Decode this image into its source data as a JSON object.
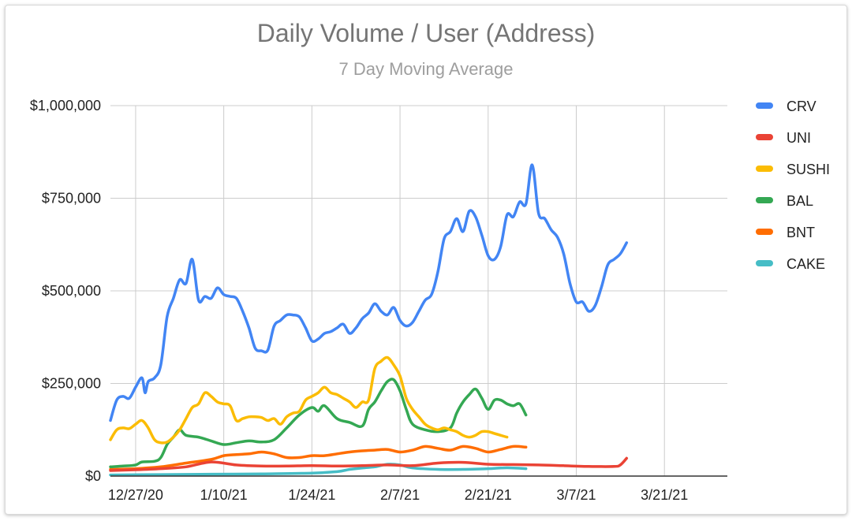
{
  "chart_data": {
    "type": "line",
    "title": "Daily Volume / User (Address)",
    "subtitle": "7 Day Moving Average",
    "xlabel": "",
    "ylabel": "",
    "x_tick_labels": [
      "12/27/20",
      "1/10/21",
      "1/24/21",
      "2/7/21",
      "2/21/21",
      "3/7/21",
      "3/21/21"
    ],
    "y_tick_labels": [
      "$0",
      "$250,000",
      "$500,000",
      "$750,000",
      "$1,000,000"
    ],
    "y_ticks": [
      0,
      250000,
      500000,
      750000,
      1000000
    ],
    "ylim": [
      0,
      1000000
    ],
    "x_range_days": [
      -4,
      94
    ],
    "x_tick_days": [
      0,
      14,
      28,
      42,
      56,
      70,
      84
    ],
    "grid": true,
    "legend_position": "right",
    "series": [
      {
        "name": "CRV",
        "color": "#4285f4",
        "values": [
          [
            -4,
            150000
          ],
          [
            -3,
            205000
          ],
          [
            -2,
            215000
          ],
          [
            -1,
            210000
          ],
          [
            0,
            240000
          ],
          [
            1,
            265000
          ],
          [
            1.5,
            225000
          ],
          [
            2,
            255000
          ],
          [
            3,
            265000
          ],
          [
            4,
            300000
          ],
          [
            5,
            430000
          ],
          [
            6,
            480000
          ],
          [
            7,
            530000
          ],
          [
            8,
            520000
          ],
          [
            9,
            585000
          ],
          [
            10,
            475000
          ],
          [
            11,
            485000
          ],
          [
            12,
            480000
          ],
          [
            13,
            508000
          ],
          [
            14,
            490000
          ],
          [
            15,
            485000
          ],
          [
            16,
            480000
          ],
          [
            17,
            445000
          ],
          [
            18,
            400000
          ],
          [
            19,
            345000
          ],
          [
            20,
            338000
          ],
          [
            21,
            340000
          ],
          [
            22,
            405000
          ],
          [
            23,
            420000
          ],
          [
            24,
            435000
          ],
          [
            25,
            435000
          ],
          [
            26,
            430000
          ],
          [
            27,
            400000
          ],
          [
            28,
            365000
          ],
          [
            29,
            370000
          ],
          [
            30,
            385000
          ],
          [
            31,
            390000
          ],
          [
            32,
            400000
          ],
          [
            33,
            410000
          ],
          [
            34,
            385000
          ],
          [
            35,
            400000
          ],
          [
            36,
            425000
          ],
          [
            37,
            440000
          ],
          [
            38,
            465000
          ],
          [
            39,
            445000
          ],
          [
            40,
            435000
          ],
          [
            41,
            455000
          ],
          [
            42,
            420000
          ],
          [
            43,
            405000
          ],
          [
            44,
            415000
          ],
          [
            45,
            445000
          ],
          [
            46,
            475000
          ],
          [
            47,
            490000
          ],
          [
            48,
            550000
          ],
          [
            49,
            640000
          ],
          [
            50,
            660000
          ],
          [
            51,
            695000
          ],
          [
            52,
            660000
          ],
          [
            53,
            715000
          ],
          [
            54,
            700000
          ],
          [
            55,
            650000
          ],
          [
            56,
            595000
          ],
          [
            57,
            585000
          ],
          [
            58,
            620000
          ],
          [
            59,
            705000
          ],
          [
            60,
            700000
          ],
          [
            61,
            740000
          ],
          [
            62,
            735000
          ],
          [
            63,
            840000
          ],
          [
            64,
            710000
          ],
          [
            65,
            695000
          ],
          [
            66,
            665000
          ],
          [
            67,
            645000
          ],
          [
            68,
            600000
          ],
          [
            69,
            520000
          ],
          [
            70,
            470000
          ],
          [
            71,
            470000
          ],
          [
            72,
            445000
          ],
          [
            73,
            460000
          ],
          [
            74,
            510000
          ],
          [
            75,
            570000
          ],
          [
            76,
            585000
          ],
          [
            77,
            600000
          ],
          [
            78,
            630000
          ]
        ]
      },
      {
        "name": "UNI",
        "color": "#ea4335",
        "values": [
          [
            -4,
            15000
          ],
          [
            0,
            17000
          ],
          [
            4,
            20000
          ],
          [
            8,
            25000
          ],
          [
            12,
            38000
          ],
          [
            16,
            30000
          ],
          [
            20,
            27000
          ],
          [
            24,
            27000
          ],
          [
            28,
            28000
          ],
          [
            32,
            27000
          ],
          [
            36,
            28000
          ],
          [
            40,
            30000
          ],
          [
            44,
            28000
          ],
          [
            48,
            35000
          ],
          [
            52,
            37000
          ],
          [
            56,
            32000
          ],
          [
            60,
            31000
          ],
          [
            64,
            30000
          ],
          [
            68,
            28000
          ],
          [
            72,
            26000
          ],
          [
            76,
            26000
          ],
          [
            77,
            30000
          ],
          [
            78,
            48000
          ]
        ]
      },
      {
        "name": "SUSHI",
        "color": "#fbbc04",
        "values": [
          [
            -4,
            98000
          ],
          [
            -3,
            125000
          ],
          [
            -2,
            130000
          ],
          [
            -1,
            128000
          ],
          [
            0,
            140000
          ],
          [
            1,
            150000
          ],
          [
            2,
            130000
          ],
          [
            3,
            98000
          ],
          [
            4,
            90000
          ],
          [
            5,
            92000
          ],
          [
            6,
            105000
          ],
          [
            7,
            125000
          ],
          [
            8,
            155000
          ],
          [
            9,
            185000
          ],
          [
            10,
            195000
          ],
          [
            11,
            225000
          ],
          [
            12,
            215000
          ],
          [
            13,
            200000
          ],
          [
            14,
            195000
          ],
          [
            15,
            190000
          ],
          [
            16,
            150000
          ],
          [
            17,
            155000
          ],
          [
            18,
            160000
          ],
          [
            19,
            160000
          ],
          [
            20,
            158000
          ],
          [
            21,
            150000
          ],
          [
            22,
            155000
          ],
          [
            23,
            140000
          ],
          [
            24,
            160000
          ],
          [
            25,
            170000
          ],
          [
            26,
            175000
          ],
          [
            27,
            205000
          ],
          [
            28,
            215000
          ],
          [
            29,
            225000
          ],
          [
            30,
            240000
          ],
          [
            31,
            225000
          ],
          [
            32,
            220000
          ],
          [
            33,
            210000
          ],
          [
            34,
            200000
          ],
          [
            35,
            185000
          ],
          [
            36,
            200000
          ],
          [
            37,
            205000
          ],
          [
            38,
            290000
          ],
          [
            39,
            310000
          ],
          [
            40,
            320000
          ],
          [
            41,
            300000
          ],
          [
            42,
            270000
          ],
          [
            43,
            210000
          ],
          [
            44,
            180000
          ],
          [
            45,
            160000
          ],
          [
            46,
            140000
          ],
          [
            47,
            130000
          ],
          [
            48,
            125000
          ],
          [
            49,
            130000
          ],
          [
            50,
            125000
          ],
          [
            51,
            120000
          ],
          [
            52,
            110000
          ],
          [
            53,
            105000
          ],
          [
            54,
            110000
          ],
          [
            55,
            120000
          ],
          [
            56,
            120000
          ],
          [
            57,
            115000
          ],
          [
            58,
            110000
          ],
          [
            59,
            105000
          ]
        ]
      },
      {
        "name": "BAL",
        "color": "#34a853",
        "values": [
          [
            -4,
            25000
          ],
          [
            -2,
            27000
          ],
          [
            0,
            30000
          ],
          [
            1,
            38000
          ],
          [
            3,
            40000
          ],
          [
            4,
            50000
          ],
          [
            5,
            85000
          ],
          [
            6,
            105000
          ],
          [
            7,
            125000
          ],
          [
            8,
            110000
          ],
          [
            10,
            105000
          ],
          [
            12,
            95000
          ],
          [
            14,
            85000
          ],
          [
            16,
            90000
          ],
          [
            18,
            95000
          ],
          [
            20,
            92000
          ],
          [
            22,
            98000
          ],
          [
            24,
            130000
          ],
          [
            26,
            165000
          ],
          [
            28,
            185000
          ],
          [
            29,
            175000
          ],
          [
            30,
            190000
          ],
          [
            32,
            155000
          ],
          [
            34,
            145000
          ],
          [
            36,
            135000
          ],
          [
            37,
            180000
          ],
          [
            38,
            200000
          ],
          [
            39,
            230000
          ],
          [
            40,
            255000
          ],
          [
            41,
            260000
          ],
          [
            42,
            230000
          ],
          [
            43,
            180000
          ],
          [
            44,
            140000
          ],
          [
            46,
            125000
          ],
          [
            48,
            120000
          ],
          [
            50,
            130000
          ],
          [
            51,
            170000
          ],
          [
            52,
            200000
          ],
          [
            53,
            220000
          ],
          [
            54,
            235000
          ],
          [
            55,
            210000
          ],
          [
            56,
            180000
          ],
          [
            57,
            205000
          ],
          [
            58,
            205000
          ],
          [
            59,
            195000
          ],
          [
            60,
            190000
          ],
          [
            61,
            195000
          ],
          [
            62,
            165000
          ]
        ]
      },
      {
        "name": "BNT",
        "color": "#ff6d01",
        "values": [
          [
            -4,
            18000
          ],
          [
            0,
            20000
          ],
          [
            4,
            25000
          ],
          [
            8,
            35000
          ],
          [
            12,
            45000
          ],
          [
            14,
            55000
          ],
          [
            16,
            58000
          ],
          [
            18,
            60000
          ],
          [
            20,
            65000
          ],
          [
            22,
            60000
          ],
          [
            24,
            50000
          ],
          [
            26,
            50000
          ],
          [
            28,
            55000
          ],
          [
            30,
            55000
          ],
          [
            32,
            60000
          ],
          [
            34,
            65000
          ],
          [
            36,
            68000
          ],
          [
            38,
            70000
          ],
          [
            40,
            72000
          ],
          [
            42,
            65000
          ],
          [
            44,
            70000
          ],
          [
            46,
            80000
          ],
          [
            48,
            75000
          ],
          [
            50,
            70000
          ],
          [
            52,
            80000
          ],
          [
            54,
            75000
          ],
          [
            56,
            65000
          ],
          [
            58,
            72000
          ],
          [
            60,
            80000
          ],
          [
            62,
            78000
          ]
        ]
      },
      {
        "name": "CAKE",
        "color": "#46bdc6",
        "values": [
          [
            -4,
            3000
          ],
          [
            4,
            4000
          ],
          [
            12,
            5000
          ],
          [
            20,
            6000
          ],
          [
            28,
            8000
          ],
          [
            32,
            12000
          ],
          [
            34,
            18000
          ],
          [
            36,
            22000
          ],
          [
            38,
            25000
          ],
          [
            40,
            32000
          ],
          [
            42,
            30000
          ],
          [
            44,
            22000
          ],
          [
            48,
            18000
          ],
          [
            52,
            18000
          ],
          [
            56,
            20000
          ],
          [
            58,
            22000
          ],
          [
            60,
            22000
          ],
          [
            62,
            20000
          ]
        ]
      }
    ]
  }
}
